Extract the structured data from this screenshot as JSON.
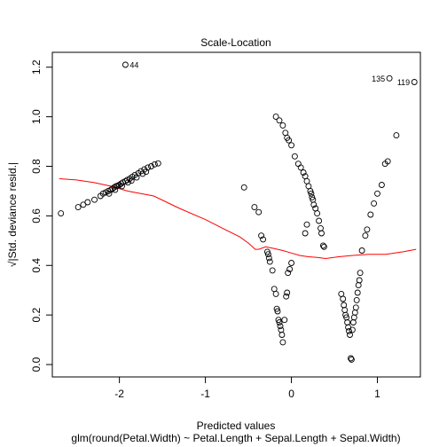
{
  "chart_data": {
    "type": "scatter",
    "title": "Scale-Location",
    "xlabel": "Predicted values",
    "xlabel2": "glm(round(Petal.Width) ~ Petal.Length + Sepal.Length + Sepal.Width)",
    "ylabel": "√|Std. deviance resid.|",
    "xlim": [
      -2.78,
      1.5
    ],
    "ylim": [
      -0.05,
      1.26
    ],
    "x_ticks": [
      -2,
      -1,
      0,
      1
    ],
    "x_tick_labels": [
      "-2",
      "-1",
      "0",
      "1"
    ],
    "y_ticks": [
      0.0,
      0.2,
      0.4,
      0.6,
      0.8,
      1.0,
      1.2
    ],
    "y_tick_labels": [
      "0.0",
      "0.2",
      "0.4",
      "0.6",
      "0.8",
      "1.0",
      "1.2"
    ],
    "grid": false,
    "colors": {
      "points": "#000000",
      "smooth": "#ff0000",
      "axis": "#000000"
    },
    "annotations": [
      {
        "label": "44",
        "x": -1.93,
        "y": 1.21,
        "side": "right"
      },
      {
        "label": "135",
        "x": 1.14,
        "y": 1.155,
        "side": "left"
      },
      {
        "label": "119",
        "x": 1.43,
        "y": 1.14,
        "side": "left"
      }
    ],
    "series": [
      {
        "kind": "points",
        "points": [
          [
            -2.68,
            0.61
          ],
          [
            -2.48,
            0.635
          ],
          [
            -2.42,
            0.645
          ],
          [
            -2.37,
            0.655
          ],
          [
            -2.29,
            0.665
          ],
          [
            -2.22,
            0.68
          ],
          [
            -2.19,
            0.69
          ],
          [
            -2.16,
            0.695
          ],
          [
            -2.13,
            0.7
          ],
          [
            -2.1,
            0.705
          ],
          [
            -2.08,
            0.71
          ],
          [
            -2.06,
            0.715
          ],
          [
            -2.04,
            0.72
          ],
          [
            -2.02,
            0.722
          ],
          [
            -2.0,
            0.725
          ],
          [
            -1.98,
            0.73
          ],
          [
            -1.96,
            0.735
          ],
          [
            -1.93,
            0.74
          ],
          [
            -1.91,
            0.745
          ],
          [
            -1.88,
            0.75
          ],
          [
            -1.85,
            0.758
          ],
          [
            -1.82,
            0.765
          ],
          [
            -1.78,
            0.772
          ],
          [
            -1.75,
            0.78
          ],
          [
            -1.71,
            0.788
          ],
          [
            -1.67,
            0.795
          ],
          [
            -1.63,
            0.8
          ],
          [
            -1.59,
            0.808
          ],
          [
            -1.55,
            0.812
          ],
          [
            -2.12,
            0.69
          ],
          [
            -2.05,
            0.705
          ],
          [
            -1.97,
            0.72
          ],
          [
            -1.9,
            0.735
          ],
          [
            -1.86,
            0.742
          ],
          [
            -1.8,
            0.755
          ],
          [
            -1.73,
            0.77
          ],
          [
            -1.69,
            0.778
          ],
          [
            -1.93,
            1.21
          ],
          [
            -0.55,
            0.715
          ],
          [
            -0.43,
            0.635
          ],
          [
            -0.38,
            0.615
          ],
          [
            -0.35,
            0.52
          ],
          [
            -0.33,
            0.505
          ],
          [
            -0.28,
            0.455
          ],
          [
            -0.27,
            0.445
          ],
          [
            -0.26,
            0.43
          ],
          [
            -0.25,
            0.415
          ],
          [
            -0.22,
            0.38
          ],
          [
            -0.2,
            0.305
          ],
          [
            -0.18,
            0.285
          ],
          [
            -0.17,
            0.225
          ],
          [
            -0.16,
            0.215
          ],
          [
            -0.15,
            0.18
          ],
          [
            -0.14,
            0.17
          ],
          [
            -0.13,
            0.155
          ],
          [
            -0.12,
            0.14
          ],
          [
            -0.11,
            0.12
          ],
          [
            -0.1,
            0.09
          ],
          [
            -0.08,
            0.18
          ],
          [
            -0.06,
            0.275
          ],
          [
            -0.05,
            0.29
          ],
          [
            -0.04,
            0.37
          ],
          [
            -0.02,
            0.385
          ],
          [
            0.0,
            0.41
          ],
          [
            -0.18,
            1.0
          ],
          [
            -0.14,
            0.985
          ],
          [
            -0.1,
            0.965
          ],
          [
            -0.07,
            0.935
          ],
          [
            -0.05,
            0.915
          ],
          [
            -0.03,
            0.905
          ],
          [
            0.0,
            0.885
          ],
          [
            0.04,
            0.84
          ],
          [
            0.08,
            0.81
          ],
          [
            0.11,
            0.795
          ],
          [
            0.14,
            0.775
          ],
          [
            0.16,
            0.76
          ],
          [
            0.18,
            0.74
          ],
          [
            0.2,
            0.72
          ],
          [
            0.22,
            0.7
          ],
          [
            0.23,
            0.69
          ],
          [
            0.24,
            0.675
          ],
          [
            0.25,
            0.665
          ],
          [
            0.26,
            0.645
          ],
          [
            0.28,
            0.63
          ],
          [
            0.3,
            0.61
          ],
          [
            0.32,
            0.58
          ],
          [
            0.34,
            0.55
          ],
          [
            0.35,
            0.53
          ],
          [
            0.37,
            0.48
          ],
          [
            0.38,
            0.475
          ],
          [
            0.18,
            0.565
          ],
          [
            0.16,
            0.53
          ],
          [
            0.58,
            0.285
          ],
          [
            0.6,
            0.265
          ],
          [
            0.61,
            0.24
          ],
          [
            0.62,
            0.22
          ],
          [
            0.63,
            0.2
          ],
          [
            0.64,
            0.19
          ],
          [
            0.65,
            0.17
          ],
          [
            0.66,
            0.15
          ],
          [
            0.67,
            0.135
          ],
          [
            0.68,
            0.12
          ],
          [
            0.69,
            0.025
          ],
          [
            0.7,
            0.02
          ],
          [
            0.71,
            0.14
          ],
          [
            0.72,
            0.17
          ],
          [
            0.73,
            0.19
          ],
          [
            0.74,
            0.21
          ],
          [
            0.75,
            0.23
          ],
          [
            0.76,
            0.26
          ],
          [
            0.77,
            0.29
          ],
          [
            0.78,
            0.32
          ],
          [
            0.79,
            0.34
          ],
          [
            0.8,
            0.37
          ],
          [
            0.82,
            0.46
          ],
          [
            0.86,
            0.52
          ],
          [
            0.88,
            0.545
          ],
          [
            0.92,
            0.605
          ],
          [
            0.96,
            0.65
          ],
          [
            1.0,
            0.69
          ],
          [
            1.05,
            0.725
          ],
          [
            1.09,
            0.81
          ],
          [
            1.12,
            0.82
          ],
          [
            1.22,
            0.925
          ],
          [
            1.14,
            1.155
          ],
          [
            1.43,
            1.14
          ]
        ]
      },
      {
        "kind": "smooth",
        "points": [
          [
            -2.7,
            0.75
          ],
          [
            -2.5,
            0.745
          ],
          [
            -2.3,
            0.735
          ],
          [
            -2.1,
            0.72
          ],
          [
            -1.9,
            0.7
          ],
          [
            -1.6,
            0.68
          ],
          [
            -1.3,
            0.63
          ],
          [
            -1.0,
            0.585
          ],
          [
            -0.8,
            0.55
          ],
          [
            -0.6,
            0.515
          ],
          [
            -0.5,
            0.49
          ],
          [
            -0.42,
            0.465
          ],
          [
            -0.38,
            0.465
          ],
          [
            -0.3,
            0.475
          ],
          [
            -0.2,
            0.468
          ],
          [
            -0.1,
            0.46
          ],
          [
            0.0,
            0.45
          ],
          [
            0.1,
            0.44
          ],
          [
            0.2,
            0.435
          ],
          [
            0.3,
            0.432
          ],
          [
            0.4,
            0.428
          ],
          [
            0.55,
            0.435
          ],
          [
            0.7,
            0.44
          ],
          [
            0.9,
            0.445
          ],
          [
            1.1,
            0.445
          ],
          [
            1.3,
            0.455
          ],
          [
            1.45,
            0.465
          ]
        ]
      }
    ]
  }
}
